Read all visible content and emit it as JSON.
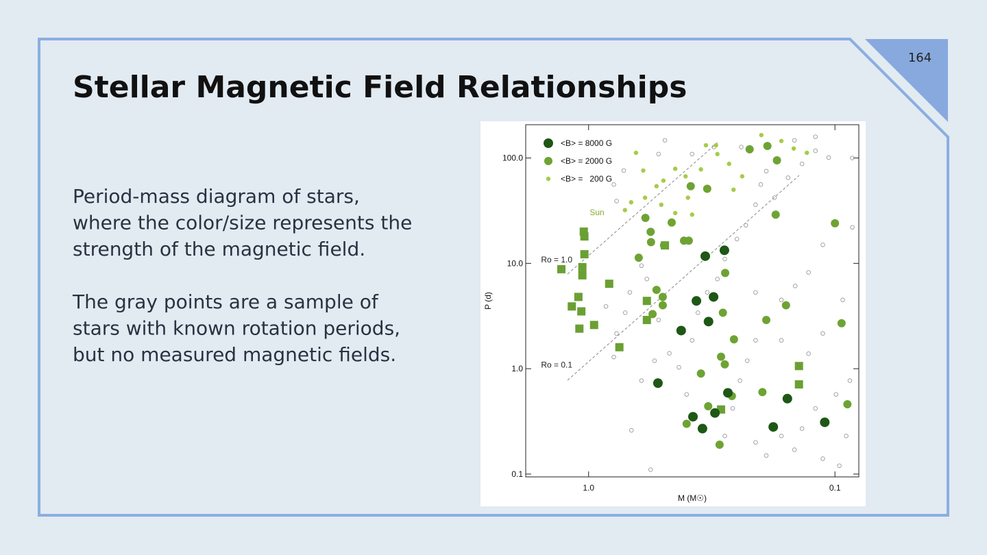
{
  "slide": {
    "title": "Stellar Magnetic Field Relationships",
    "page_number": "164",
    "paragraphs": [
      [
        "Period-mass diagram of stars,",
        "where the color/size represents the",
        "strength of the magnetic field."
      ],
      [
        "The gray points are a sample of",
        "stars with known rotation periods,",
        "but no measured magnetic fields."
      ]
    ]
  },
  "chart_data": {
    "type": "scatter",
    "x_label": "M (M☉)",
    "y_label": "P (d)",
    "x_log": true,
    "y_log": true,
    "xlim": [
      1.8,
      0.08
    ],
    "ylim": [
      0.094,
      207
    ],
    "xticks": [
      {
        "value": 1,
        "label": "1.0"
      },
      {
        "value": 0.1,
        "label": "0.1"
      }
    ],
    "yticks": [
      {
        "value": 100,
        "label": "100.0"
      },
      {
        "value": 10,
        "label": "10.0"
      },
      {
        "value": 1,
        "label": "1.0"
      },
      {
        "value": 0.1,
        "label": "0.1"
      }
    ],
    "legend": "upper left",
    "series": [
      {
        "name": "<B> = 8000 G",
        "color": "#1e5716",
        "marker": "circle",
        "x": [
          0.281,
          0.336,
          0.311,
          0.365,
          0.326,
          0.421,
          0.523,
          0.345,
          0.377,
          0.307,
          0.11,
          0.178,
          0.156,
          0.272
        ],
        "y": [
          13.3,
          11.7,
          4.8,
          4.4,
          2.8,
          2.3,
          0.73,
          0.27,
          0.35,
          0.38,
          0.31,
          0.28,
          0.52,
          0.59
        ]
      },
      {
        "name": "<B> = 2000 G",
        "color": "#6ea334",
        "marker": "circle",
        "x": [
          0.392,
          0.41,
          0.494,
          0.558,
          0.53,
          0.5,
          0.55,
          0.5,
          0.279,
          0.285,
          0.257,
          0.29,
          0.28,
          0.35,
          0.197,
          0.262,
          0.327,
          0.4,
          0.294,
          0.172,
          0.1,
          0.174,
          0.094,
          0.089,
          0.19,
          0.158,
          0.626,
          0.56,
          0.588,
          0.46,
          0.33,
          0.222,
          0.188,
          0.385
        ],
        "y": [
          16.4,
          16.4,
          14.8,
          15.9,
          5.6,
          4.8,
          3.3,
          4.0,
          8.1,
          3.4,
          1.9,
          1.3,
          1.1,
          0.9,
          0.6,
          0.55,
          0.44,
          0.3,
          0.19,
          95,
          24,
          29,
          2.7,
          0.46,
          2.9,
          4.0,
          11.3,
          19.9,
          27,
          24.4,
          51,
          121,
          130,
          54
        ]
      },
      {
        "name": "<B> =   200 G",
        "color": "#a6cb48",
        "marker": "circle",
        "x": [
          0.642,
          0.6,
          0.672,
          0.53,
          0.497,
          0.445,
          0.404,
          0.35,
          0.334,
          0.3,
          0.269,
          0.238,
          0.199,
          0.165,
          0.147,
          0.13,
          0.258,
          0.38,
          0.59,
          0.507,
          0.445,
          0.712,
          0.395,
          0.304
        ],
        "y": [
          112,
          76,
          38,
          54,
          61,
          79,
          67,
          78,
          132,
          109,
          88,
          67,
          165,
          145,
          123,
          112,
          50,
          29,
          42,
          36,
          30,
          32,
          42,
          132
        ]
      },
      {
        "color": "#6aa033",
        "marker": "square",
        "x": [
          1.046,
          1.04,
          1.04,
          1.06,
          1.29,
          1.06,
          1.1,
          1.17,
          1.07,
          1.09,
          0.95,
          0.825,
          0.75,
          0.58,
          0.58,
          0.49,
          0.29,
          0.14,
          0.14
        ],
        "y": [
          20,
          18,
          12.2,
          9.2,
          8.8,
          7.7,
          4.8,
          3.9,
          3.5,
          2.4,
          2.6,
          6.4,
          1.6,
          4.4,
          2.9,
          14.8,
          0.41,
          1.06,
          0.71
        ]
      },
      {
        "color": "#9a9a9a",
        "marker": "open-circle",
        "x": [
          0.71,
          0.68,
          0.61,
          0.58,
          0.52,
          0.47,
          0.43,
          0.4,
          0.38,
          0.36,
          0.33,
          0.3,
          0.28,
          0.25,
          0.23,
          0.21,
          0.2,
          0.19,
          0.176,
          0.155,
          0.136,
          0.12,
          0.106,
          0.085,
          0.085,
          0.112,
          0.128,
          0.145,
          0.165,
          0.19,
          0.21,
          0.227,
          0.243,
          0.26,
          0.28,
          0.21,
          0.165,
          0.136,
          0.12,
          0.099,
          0.09,
          0.096,
          0.112,
          0.146,
          0.19,
          0.56,
          0.67,
          0.61,
          0.54,
          0.77,
          0.79,
          0.85,
          0.77,
          0.79,
          0.72,
          0.52,
          0.49,
          0.38,
          0.31,
          0.24,
          0.146,
          0.12,
          0.087,
          0.21,
          0.128,
          0.165,
          0.112,
          0.093
        ],
        "y": [
          3.4,
          5.3,
          9.5,
          7.1,
          2.9,
          1.4,
          1.03,
          0.57,
          1.86,
          3.4,
          5.3,
          7.1,
          11,
          17,
          23,
          36,
          56,
          75,
          42,
          65,
          88,
          117,
          101,
          100,
          22,
          15,
          8.2,
          6.1,
          4.5,
          2.9,
          1.86,
          1.19,
          0.77,
          0.42,
          0.23,
          0.2,
          0.23,
          0.27,
          0.42,
          0.57,
          0.23,
          0.12,
          0.14,
          0.17,
          0.15,
          0.11,
          0.26,
          0.77,
          1.19,
          2.16,
          1.29,
          3.9,
          39,
          56,
          76,
          109,
          147,
          109,
          127,
          127,
          147,
          159,
          0.77,
          5.3,
          1.39,
          1.86,
          2.16,
          4.5
        ]
      }
    ],
    "annotations": [
      {
        "text": "Sun",
        "x": 0.99,
        "y": 30.5
      },
      {
        "text": "Ro = 1.0",
        "x": 1.56,
        "y": 10.8
      },
      {
        "text": "Ro = 0.1",
        "x": 1.56,
        "y": 1.09
      }
    ]
  }
}
